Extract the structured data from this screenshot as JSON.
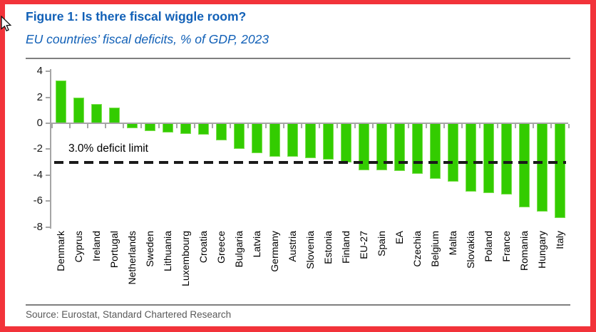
{
  "figure": {
    "title": "Figure 1: Is there fiscal wiggle room?",
    "subtitle": "EU countries’ fiscal deficits, % of GDP, 2023",
    "source": "Source: Eurostat, Standard Chartered Research"
  },
  "colors": {
    "frame_red": "#f2333a",
    "title_blue": "#1160b7",
    "bar_green": "#33cc00",
    "axis_gray": "#a6a6a6",
    "limit_black": "#1a1a1a",
    "source_gray": "#595959"
  },
  "icons": {
    "cursor": "mouse-cursor-icon"
  },
  "chart_data": {
    "type": "bar",
    "title": "Figure 1: Is there fiscal wiggle room?",
    "subtitle": "EU countries’ fiscal deficits, % of GDP, 2023",
    "xlabel": "",
    "ylabel": "% of GDP",
    "ylim": [
      -8,
      4
    ],
    "yticks": [
      4,
      2,
      0,
      -2,
      -4,
      -6,
      -8
    ],
    "grid": false,
    "legend": "none",
    "bar_color": "#33cc00",
    "categories": [
      "Denmark",
      "Cyprus",
      "Ireland",
      "Portugal",
      "Netherlands",
      "Sweden",
      "Lithuania",
      "Luxembourg",
      "Croatia",
      "Greece",
      "Bulgaria",
      "Latvia",
      "Germany",
      "Austria",
      "Slovenia",
      "Estonia",
      "Finland",
      "EU-27",
      "Spain",
      "EA",
      "Czechia",
      "Belgium",
      "Malta",
      "Slovakia",
      "Poland",
      "France",
      "Romania",
      "Hungary",
      "Italy"
    ],
    "values": [
      3.3,
      2.0,
      1.5,
      1.2,
      -0.4,
      -0.6,
      -0.7,
      -0.8,
      -0.9,
      -1.3,
      -2.0,
      -2.3,
      -2.6,
      -2.6,
      -2.7,
      -2.8,
      -3.0,
      -3.6,
      -3.6,
      -3.7,
      -3.9,
      -4.3,
      -4.5,
      -5.3,
      -5.4,
      -5.5,
      -6.5,
      -6.8,
      -7.3
    ],
    "reference_line": {
      "value": -3.0,
      "label": "3.0% deficit limit",
      "style": "dashed",
      "color": "#1a1a1a"
    }
  }
}
